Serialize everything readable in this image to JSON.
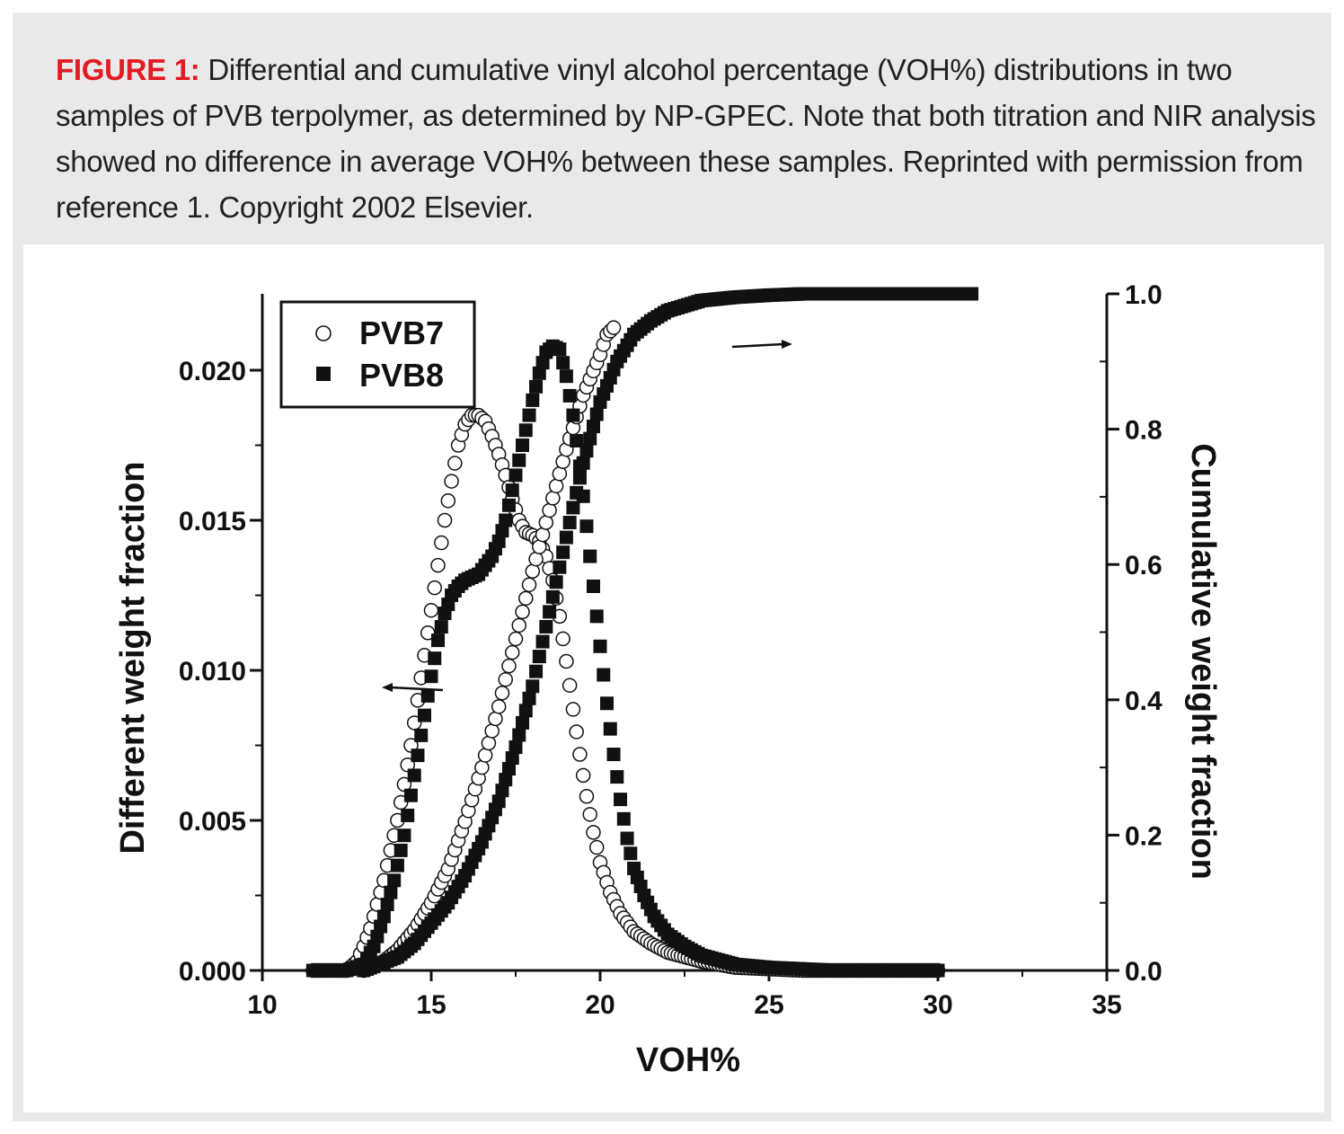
{
  "caption": {
    "label": "FIGURE 1:",
    "text": " Differential and cumulative vinyl alcohol percentage (VOH%) distributions in two samples of PVB terpolymer, as determined by NP-GPEC. Note that both titration and NIR analysis showed no difference in average VOH% between these samples. Reprinted with permission from reference 1. Copyright 2002 Elsevier."
  },
  "chart_data": {
    "type": "scatter",
    "title": "",
    "xlabel": "VOH%",
    "ylabel_left": "Different weight fraction",
    "ylabel_right": "Cumulative weight fraction",
    "xlim": [
      10,
      35
    ],
    "ylim_left": [
      0,
      0.0225
    ],
    "ylim_right": [
      0,
      1.0
    ],
    "x_ticks": [
      "10",
      "15",
      "20",
      "25",
      "30",
      "35"
    ],
    "y_left_ticks": [
      "0.000",
      "0.005",
      "0.010",
      "0.015",
      "0.020"
    ],
    "y_right_ticks": [
      "0.0",
      "0.2",
      "0.4",
      "0.6",
      "0.8",
      "1.0"
    ],
    "legend": {
      "position": "top-left",
      "entries": [
        "PVB7",
        "PVB8"
      ]
    },
    "series": [
      {
        "name": "PVB7",
        "marker": "open-circle",
        "differential": [
          [
            11.5,
            0
          ],
          [
            12,
            0
          ],
          [
            12.5,
            0
          ],
          [
            12.8,
            0.0003
          ],
          [
            13,
            0.0008
          ],
          [
            13.2,
            0.0014
          ],
          [
            13.4,
            0.0022
          ],
          [
            13.6,
            0.003
          ],
          [
            13.8,
            0.004
          ],
          [
            14,
            0.005
          ],
          [
            14.2,
            0.0062
          ],
          [
            14.4,
            0.0075
          ],
          [
            14.6,
            0.009
          ],
          [
            14.8,
            0.0105
          ],
          [
            15,
            0.012
          ],
          [
            15.2,
            0.0135
          ],
          [
            15.4,
            0.015
          ],
          [
            15.6,
            0.0163
          ],
          [
            15.8,
            0.0175
          ],
          [
            16,
            0.0182
          ],
          [
            16.2,
            0.0185
          ],
          [
            16.4,
            0.0185
          ],
          [
            16.6,
            0.0183
          ],
          [
            16.8,
            0.0178
          ],
          [
            17,
            0.0172
          ],
          [
            17.2,
            0.0165
          ],
          [
            17.4,
            0.0157
          ],
          [
            17.6,
            0.015
          ],
          [
            17.8,
            0.0146
          ],
          [
            18,
            0.0145
          ],
          [
            18.2,
            0.0143
          ],
          [
            18.4,
            0.0138
          ],
          [
            18.6,
            0.013
          ],
          [
            18.8,
            0.0118
          ],
          [
            19,
            0.0103
          ],
          [
            19.2,
            0.0087
          ],
          [
            19.4,
            0.0072
          ],
          [
            19.6,
            0.0058
          ],
          [
            19.8,
            0.0046
          ],
          [
            20,
            0.0036
          ],
          [
            20.3,
            0.0026
          ],
          [
            20.6,
            0.0019
          ],
          [
            21,
            0.0013
          ],
          [
            21.5,
            0.0009
          ],
          [
            22,
            0.0006
          ],
          [
            23,
            0.0003
          ],
          [
            24,
            0.0001
          ],
          [
            25,
            5e-05
          ],
          [
            26,
            0
          ],
          [
            27,
            0
          ],
          [
            28,
            0
          ],
          [
            29,
            0
          ],
          [
            30,
            0
          ]
        ],
        "cumulative": [
          [
            13,
            0
          ],
          [
            13.5,
            0.01
          ],
          [
            14,
            0.03
          ],
          [
            14.5,
            0.06
          ],
          [
            15,
            0.1
          ],
          [
            15.5,
            0.15
          ],
          [
            16,
            0.22
          ],
          [
            16.5,
            0.3
          ],
          [
            17,
            0.39
          ],
          [
            17.5,
            0.49
          ],
          [
            18,
            0.59
          ],
          [
            18.5,
            0.68
          ],
          [
            19,
            0.77
          ],
          [
            19.5,
            0.85
          ],
          [
            20,
            0.91
          ],
          [
            20.2,
            0.94
          ],
          [
            20.4,
            0.95
          ]
        ]
      },
      {
        "name": "PVB8",
        "marker": "filled-square",
        "differential": [
          [
            11.5,
            0
          ],
          [
            12,
            0
          ],
          [
            12.5,
            0
          ],
          [
            13,
            0.0002
          ],
          [
            13.3,
            0.0008
          ],
          [
            13.6,
            0.0018
          ],
          [
            13.9,
            0.003
          ],
          [
            14.2,
            0.0045
          ],
          [
            14.5,
            0.0065
          ],
          [
            14.8,
            0.0085
          ],
          [
            15,
            0.0098
          ],
          [
            15.2,
            0.011
          ],
          [
            15.4,
            0.0119
          ],
          [
            15.6,
            0.0125
          ],
          [
            15.8,
            0.0128
          ],
          [
            16,
            0.013
          ],
          [
            16.2,
            0.0131
          ],
          [
            16.4,
            0.0132
          ],
          [
            16.6,
            0.0135
          ],
          [
            16.8,
            0.0138
          ],
          [
            17,
            0.0143
          ],
          [
            17.2,
            0.015
          ],
          [
            17.4,
            0.016
          ],
          [
            17.6,
            0.017
          ],
          [
            17.8,
            0.018
          ],
          [
            18,
            0.019
          ],
          [
            18.2,
            0.0199
          ],
          [
            18.4,
            0.0206
          ],
          [
            18.6,
            0.0208
          ],
          [
            18.8,
            0.0207
          ],
          [
            19,
            0.0198
          ],
          [
            19.2,
            0.0185
          ],
          [
            19.4,
            0.0168
          ],
          [
            19.6,
            0.0148
          ],
          [
            19.8,
            0.0128
          ],
          [
            20,
            0.0108
          ],
          [
            20.2,
            0.0089
          ],
          [
            20.4,
            0.0072
          ],
          [
            20.6,
            0.0057
          ],
          [
            20.8,
            0.0044
          ],
          [
            21,
            0.0034
          ],
          [
            21.3,
            0.0025
          ],
          [
            21.6,
            0.0018
          ],
          [
            22,
            0.0012
          ],
          [
            22.5,
            0.0008
          ],
          [
            23,
            0.0005
          ],
          [
            24,
            0.0002
          ],
          [
            25,
            0.0001
          ],
          [
            26,
            5e-05
          ],
          [
            27,
            0
          ],
          [
            28,
            0
          ],
          [
            29,
            0
          ],
          [
            30,
            0
          ]
        ],
        "cumulative": [
          [
            13,
            0
          ],
          [
            13.5,
            0.01
          ],
          [
            14,
            0.02
          ],
          [
            14.5,
            0.04
          ],
          [
            15,
            0.07
          ],
          [
            15.5,
            0.1
          ],
          [
            16,
            0.14
          ],
          [
            16.5,
            0.19
          ],
          [
            17,
            0.25
          ],
          [
            17.5,
            0.33
          ],
          [
            18,
            0.42
          ],
          [
            18.5,
            0.53
          ],
          [
            19,
            0.64
          ],
          [
            19.5,
            0.75
          ],
          [
            20,
            0.84
          ],
          [
            20.5,
            0.9
          ],
          [
            21,
            0.94
          ],
          [
            21.5,
            0.96
          ],
          [
            22,
            0.975
          ],
          [
            23,
            0.99
          ],
          [
            24,
            0.995
          ],
          [
            25,
            0.998
          ],
          [
            26,
            1.0
          ],
          [
            28,
            1.0
          ],
          [
            30,
            1.0
          ],
          [
            31,
            1.0
          ]
        ]
      }
    ]
  }
}
